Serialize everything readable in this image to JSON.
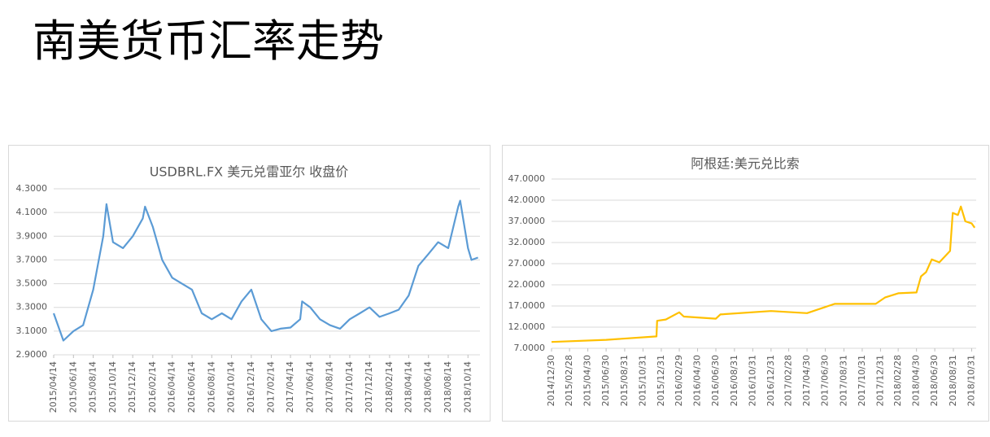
{
  "title": "南美货币汇率走势",
  "chart_data": [
    {
      "type": "line",
      "title": "USDBRL.FX 美元兑雷亚尔 收盘价",
      "x": [
        "2015/04/14",
        "2015/05/14",
        "2015/06/14",
        "2015/07/14",
        "2015/08/14",
        "2015/09/14",
        "2015/09/24",
        "2015/10/14",
        "2015/11/14",
        "2015/12/14",
        "2016/01/14",
        "2016/01/21",
        "2016/02/14",
        "2016/03/14",
        "2016/04/14",
        "2016/05/14",
        "2016/06/14",
        "2016/07/14",
        "2016/08/14",
        "2016/09/14",
        "2016/10/14",
        "2016/11/14",
        "2016/12/14",
        "2017/01/14",
        "2017/02/14",
        "2017/03/14",
        "2017/04/14",
        "2017/05/14",
        "2017/05/20",
        "2017/06/14",
        "2017/07/14",
        "2017/08/14",
        "2017/09/14",
        "2017/10/14",
        "2017/11/14",
        "2017/12/14",
        "2018/01/14",
        "2018/02/14",
        "2018/03/14",
        "2018/04/14",
        "2018/05/14",
        "2018/06/14",
        "2018/07/14",
        "2018/08/14",
        "2018/09/14",
        "2018/09/20",
        "2018/10/14",
        "2018/10/25",
        "2018/11/14"
      ],
      "series": [
        {
          "name": "USDBRL.FX",
          "color": "#5b9bd5",
          "values": [
            3.25,
            3.02,
            3.1,
            3.15,
            3.45,
            3.9,
            4.17,
            3.85,
            3.8,
            3.9,
            4.05,
            4.15,
            3.98,
            3.7,
            3.55,
            3.5,
            3.45,
            3.25,
            3.2,
            3.25,
            3.2,
            3.35,
            3.45,
            3.2,
            3.1,
            3.12,
            3.13,
            3.2,
            3.35,
            3.3,
            3.2,
            3.15,
            3.12,
            3.2,
            3.25,
            3.3,
            3.22,
            3.25,
            3.28,
            3.4,
            3.65,
            3.75,
            3.85,
            3.8,
            4.15,
            4.2,
            3.8,
            3.7,
            3.72
          ]
        }
      ],
      "xlim": [
        "2015/04/14",
        "2018/11/20"
      ],
      "xticks": [
        "2015/04/14",
        "2015/06/14",
        "2015/08/14",
        "2015/10/14",
        "2015/12/14",
        "2016/02/14",
        "2016/04/14",
        "2016/06/14",
        "2016/08/14",
        "2016/10/14",
        "2016/12/14",
        "2017/02/14",
        "2017/04/14",
        "2017/06/14",
        "2017/08/14",
        "2017/10/14",
        "2017/12/14",
        "2018/02/14",
        "2018/04/14",
        "2018/06/14",
        "2018/08/14",
        "2018/10/14"
      ],
      "ylim": [
        2.9,
        4.3
      ],
      "yticks": [
        {
          "value": 2.9,
          "label": "2.9000"
        },
        {
          "value": 3.1,
          "label": "3.1000"
        },
        {
          "value": 3.3,
          "label": "3.3000"
        },
        {
          "value": 3.5,
          "label": "3.5000"
        },
        {
          "value": 3.7,
          "label": "3.7000"
        },
        {
          "value": 3.9,
          "label": "3.9000"
        },
        {
          "value": 4.1,
          "label": "4.1000"
        },
        {
          "value": 4.3,
          "label": "4.3000"
        }
      ],
      "grid": true
    },
    {
      "type": "line",
      "title": "阿根廷:美元兑比索",
      "x": [
        "2014/12/30",
        "2015/06/30",
        "2015/12/15",
        "2015/12/17",
        "2016/01/15",
        "2016/02/29",
        "2016/03/15",
        "2016/06/30",
        "2016/07/15",
        "2016/12/31",
        "2017/04/30",
        "2017/07/31",
        "2017/12/15",
        "2018/01/15",
        "2018/02/28",
        "2018/04/30",
        "2018/05/15",
        "2018/06/01",
        "2018/06/20",
        "2018/07/15",
        "2018/08/20",
        "2018/08/29",
        "2018/09/15",
        "2018/09/25",
        "2018/10/10",
        "2018/10/31",
        "2018/11/10"
      ],
      "series": [
        {
          "name": "阿根廷:美元兑比索",
          "color": "#ffc000",
          "values": [
            8.5,
            9.0,
            9.8,
            13.5,
            13.8,
            15.5,
            14.5,
            14.0,
            15.0,
            15.8,
            15.3,
            17.5,
            17.5,
            19,
            20,
            20.2,
            24,
            25,
            28,
            27.3,
            30,
            39,
            38.5,
            40.5,
            37,
            36.5,
            35.5
          ]
        }
      ],
      "xlim": [
        "2014/12/30",
        "2018/11/15"
      ],
      "xticks": [
        "2014/12/30",
        "2015/02/28",
        "2015/04/30",
        "2015/06/30",
        "2015/08/31",
        "2015/10/31",
        "2015/12/31",
        "2016/02/29",
        "2016/04/30",
        "2016/06/30",
        "2016/08/31",
        "2016/10/31",
        "2016/12/31",
        "2017/02/28",
        "2017/04/30",
        "2017/06/30",
        "2017/08/31",
        "2017/10/31",
        "2017/12/31",
        "2018/02/28",
        "2018/04/30",
        "2018/06/30",
        "2018/08/31",
        "2018/10/31"
      ],
      "ylim": [
        7,
        47
      ],
      "yticks": [
        {
          "value": 7,
          "label": "7.0000"
        },
        {
          "value": 12,
          "label": "12.0000"
        },
        {
          "value": 17,
          "label": "17.0000"
        },
        {
          "value": 22,
          "label": "22.0000"
        },
        {
          "value": 27,
          "label": "27.0000"
        },
        {
          "value": 32,
          "label": "32.0000"
        },
        {
          "value": 37,
          "label": "37.0000"
        },
        {
          "value": 42,
          "label": "42.0000"
        },
        {
          "value": 47,
          "label": "47.0000"
        }
      ],
      "grid": true
    }
  ]
}
